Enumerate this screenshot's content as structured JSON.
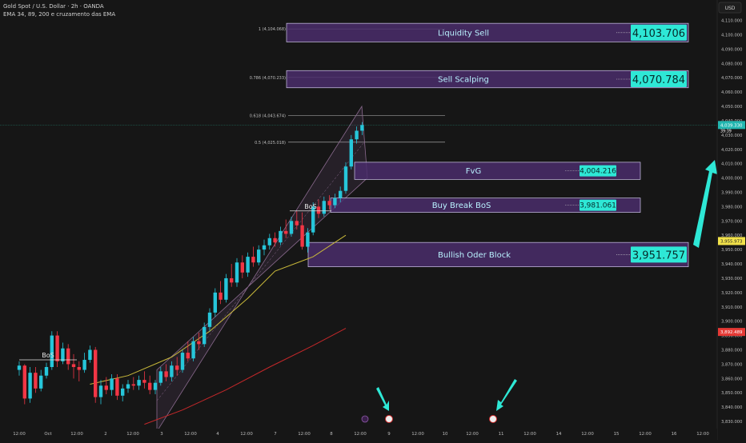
{
  "header": {
    "symbol_line": "Gold Spot / U.S. Dollar · 2h · OANDA",
    "indicator_line": "EMA 34, 89, 200 e cruzamento das EMA"
  },
  "colors": {
    "background": "#161616",
    "bull": "#26c6da",
    "bear": "#f23645",
    "zone_fill": "#4a2d6b",
    "zone_text": "#b9f2ff",
    "price_box": "#2ee8d6",
    "ema_fast": "#c9b93a",
    "ema_slow": "#c4282a",
    "channel": "#8a6a8e",
    "arrow": "#2ee8d6",
    "current_price_badge": "#22b6b0",
    "ema_badge_yellow": "#f2e24a",
    "ema_badge_red": "#e53935"
  },
  "chart_data": {
    "type": "candlestick",
    "currency": "USD",
    "ylim": [
      3825,
      4112
    ],
    "y_ticks": [
      3830,
      3840,
      3850,
      3860,
      3870,
      3880,
      3890,
      3900,
      3910,
      3920,
      3930,
      3940,
      3950,
      3960,
      3970,
      3980,
      3990,
      4000,
      4010,
      4020,
      4030,
      4040,
      4050,
      4060,
      4070,
      4080,
      4090,
      4100,
      4110
    ],
    "x_ticks": [
      "12:00",
      "Oct",
      "12:00",
      "2",
      "12:00",
      "3",
      "12:00",
      "4",
      "12:00",
      "7",
      "12:00",
      "8",
      "12:00",
      "9",
      "12:00",
      "10",
      "12:00",
      "11",
      "12:00",
      "14",
      "12:00",
      "15",
      "12:00",
      "16",
      "12:00"
    ],
    "fib_levels": [
      {
        "label": "1 (4,104.068)",
        "price": 4104.068
      },
      {
        "label": "0.786 (4,070.233)",
        "price": 4070.233
      },
      {
        "label": "0.618 (4,043.674)",
        "price": 4043.674
      },
      {
        "label": "0.5 (4,025.018)",
        "price": 4025.018
      }
    ],
    "zones": [
      {
        "name": "Liquidity Sell",
        "top": 4108,
        "bottom": 4095,
        "price_label": "4,103.706"
      },
      {
        "name": "Sell Scalping",
        "top": 4075,
        "bottom": 4063,
        "price_label": "4,070.784"
      },
      {
        "name": "FvG",
        "top": 4011,
        "bottom": 3999,
        "price_label": "4,004.216"
      },
      {
        "name": "Buy Break BoS",
        "top": 3986,
        "bottom": 3976,
        "price_label": "3,981.061"
      },
      {
        "name": "Bullish Oder Block",
        "top": 3955,
        "bottom": 3938,
        "price_label": "3,951.757"
      }
    ],
    "bos_labels": [
      {
        "text": "BoS",
        "price": 3873
      },
      {
        "text": "BoS",
        "price": 3977
      }
    ],
    "price_badges": {
      "current": "4,039.330",
      "current_sub": "39:39",
      "ema_fast": "3,955.973",
      "ema_slow": "3,892.489"
    },
    "candles": [
      [
        3866,
        3872,
        3862,
        3869
      ],
      [
        3869,
        3870,
        3842,
        3846
      ],
      [
        3846,
        3868,
        3843,
        3864
      ],
      [
        3864,
        3868,
        3850,
        3853
      ],
      [
        3853,
        3866,
        3851,
        3862
      ],
      [
        3862,
        3871,
        3860,
        3868
      ],
      [
        3868,
        3893,
        3866,
        3890
      ],
      [
        3890,
        3893,
        3868,
        3872
      ],
      [
        3872,
        3885,
        3870,
        3881
      ],
      [
        3881,
        3884,
        3866,
        3870
      ],
      [
        3870,
        3877,
        3860,
        3868
      ],
      [
        3868,
        3872,
        3858,
        3866
      ],
      [
        3866,
        3878,
        3864,
        3873
      ],
      [
        3873,
        3883,
        3871,
        3880
      ],
      [
        3880,
        3882,
        3843,
        3847
      ],
      [
        3847,
        3859,
        3842,
        3855
      ],
      [
        3855,
        3861,
        3849,
        3852
      ],
      [
        3852,
        3863,
        3848,
        3860
      ],
      [
        3860,
        3863,
        3845,
        3848
      ],
      [
        3848,
        3856,
        3844,
        3853
      ],
      [
        3853,
        3859,
        3850,
        3856
      ],
      [
        3856,
        3861,
        3852,
        3855
      ],
      [
        3855,
        3862,
        3852,
        3859
      ],
      [
        3859,
        3865,
        3853,
        3857
      ],
      [
        3857,
        3862,
        3849,
        3852
      ],
      [
        3852,
        3859,
        3849,
        3857
      ],
      [
        3857,
        3868,
        3855,
        3865
      ],
      [
        3865,
        3870,
        3858,
        3861
      ],
      [
        3861,
        3872,
        3858,
        3869
      ],
      [
        3869,
        3875,
        3862,
        3866
      ],
      [
        3866,
        3880,
        3864,
        3878
      ],
      [
        3878,
        3886,
        3872,
        3874
      ],
      [
        3874,
        3889,
        3872,
        3886
      ],
      [
        3886,
        3892,
        3880,
        3884
      ],
      [
        3884,
        3899,
        3882,
        3896
      ],
      [
        3896,
        3909,
        3893,
        3906
      ],
      [
        3906,
        3923,
        3903,
        3920
      ],
      [
        3920,
        3928,
        3912,
        3915
      ],
      [
        3915,
        3933,
        3913,
        3930
      ],
      [
        3930,
        3940,
        3924,
        3927
      ],
      [
        3927,
        3944,
        3924,
        3941
      ],
      [
        3941,
        3946,
        3930,
        3934
      ],
      [
        3934,
        3948,
        3931,
        3945
      ],
      [
        3945,
        3952,
        3938,
        3941
      ],
      [
        3941,
        3953,
        3939,
        3950
      ],
      [
        3950,
        3957,
        3946,
        3953
      ],
      [
        3953,
        3961,
        3950,
        3958
      ],
      [
        3958,
        3962,
        3952,
        3955
      ],
      [
        3955,
        3966,
        3953,
        3963
      ],
      [
        3963,
        3971,
        3958,
        3961
      ],
      [
        3961,
        3973,
        3959,
        3970
      ],
      [
        3970,
        3977,
        3964,
        3967
      ],
      [
        3967,
        3976,
        3950,
        3952
      ],
      [
        3952,
        3965,
        3948,
        3962
      ],
      [
        3962,
        3983,
        3960,
        3980
      ],
      [
        3980,
        3985,
        3972,
        3975
      ],
      [
        3975,
        3987,
        3973,
        3984
      ],
      [
        3984,
        3988,
        3978,
        3981
      ],
      [
        3981,
        3989,
        3979,
        3986
      ],
      [
        3986,
        3994,
        3983,
        3991
      ],
      [
        3991,
        4011,
        3989,
        4008
      ],
      [
        4008,
        4030,
        4006,
        4027
      ],
      [
        4027,
        4036,
        4024,
        4033
      ],
      [
        4033,
        4039,
        4030,
        4037
      ]
    ],
    "ema_fast_points": [
      [
        13,
        3856
      ],
      [
        20,
        3862
      ],
      [
        28,
        3875
      ],
      [
        35,
        3893
      ],
      [
        42,
        3916
      ],
      [
        47,
        3935
      ],
      [
        54,
        3945
      ],
      [
        60,
        3960
      ]
    ],
    "ema_slow_points": [
      [
        23,
        3828
      ],
      [
        30,
        3838
      ],
      [
        38,
        3852
      ],
      [
        46,
        3868
      ],
      [
        54,
        3883
      ],
      [
        60,
        3895
      ]
    ]
  }
}
